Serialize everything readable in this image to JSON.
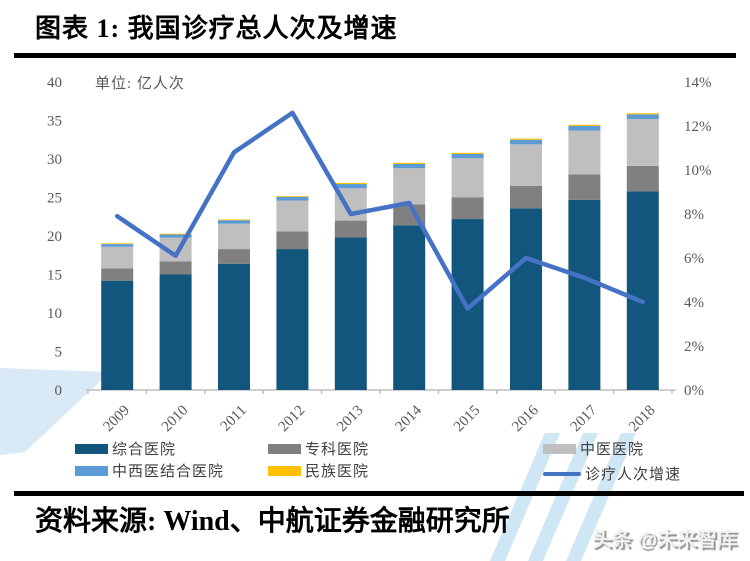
{
  "header": {
    "title": "图表 1: 我国诊疗总人次及增速"
  },
  "chart": {
    "unit_label": "单位: 亿人次"
  },
  "chart_data": {
    "type": "bar",
    "subtype": "stacked-bar-with-line",
    "title": "我国诊疗总人次及增速",
    "unit": "亿人次",
    "categories": [
      "2009",
      "2010",
      "2011",
      "2012",
      "2013",
      "2014",
      "2015",
      "2016",
      "2017",
      "2018"
    ],
    "series": [
      {
        "name": "综合医院",
        "color": "#12567D",
        "values": [
          14.2,
          15.0,
          16.4,
          18.3,
          19.8,
          21.4,
          22.2,
          23.6,
          24.7,
          25.8
        ]
      },
      {
        "name": "专科医院",
        "color": "#808080",
        "values": [
          1.6,
          1.7,
          1.9,
          2.3,
          2.2,
          2.7,
          2.8,
          2.9,
          3.3,
          3.3
        ]
      },
      {
        "name": "中医医院",
        "color": "#BFBFBF",
        "values": [
          2.8,
          3.1,
          3.3,
          4.0,
          4.2,
          4.7,
          5.1,
          5.4,
          5.7,
          6.1
        ]
      },
      {
        "name": "中西医结合医院",
        "color": "#5B9BD5",
        "values": [
          0.35,
          0.4,
          0.45,
          0.5,
          0.55,
          0.55,
          0.55,
          0.6,
          0.6,
          0.6
        ]
      },
      {
        "name": "民族医院",
        "color": "#FFC000",
        "values": [
          0.1,
          0.1,
          0.1,
          0.1,
          0.15,
          0.15,
          0.15,
          0.15,
          0.15,
          0.15
        ]
      }
    ],
    "line_series": {
      "name": "诊疗人次增速",
      "color": "#4472C4",
      "axis": "right",
      "values": [
        7.9,
        6.1,
        10.8,
        12.6,
        8.0,
        8.5,
        3.7,
        6.0,
        5.1,
        4.0
      ]
    },
    "y_left": {
      "max": 40,
      "ticks": [
        40,
        35,
        30,
        25,
        20,
        15,
        10,
        5,
        0
      ]
    },
    "y_right": {
      "max": 14,
      "ticks": [
        14,
        12,
        10,
        8,
        6,
        4,
        2,
        0
      ],
      "suffix": "%"
    },
    "grid": false,
    "legend_position": "bottom",
    "axis_text_color": "#595959"
  },
  "footer": {
    "source": "资料来源: Wind、中航证券金融研究所",
    "watermark": "头条 @未来智库"
  }
}
